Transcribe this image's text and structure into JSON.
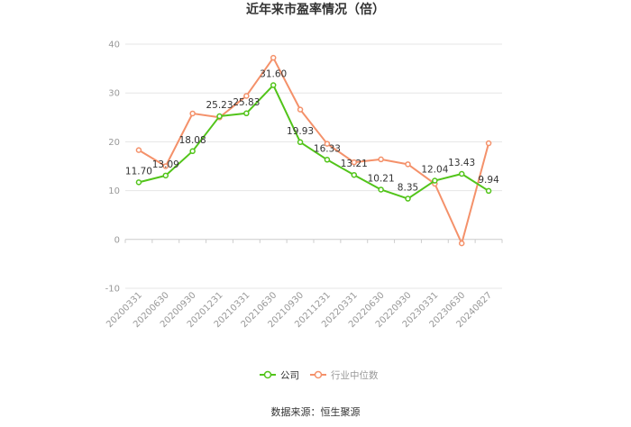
{
  "chart_data": {
    "type": "line",
    "title": "近年来市盈率情况（倍）",
    "xlabel": "",
    "ylabel": "",
    "ylim": [
      -10,
      40
    ],
    "yticks": [
      -10,
      0,
      10,
      20,
      30,
      40
    ],
    "grid": true,
    "legend_position": "bottom",
    "categories": [
      "20200331",
      "20200630",
      "20200930",
      "20201231",
      "20210331",
      "20210630",
      "20210930",
      "20211231",
      "20220331",
      "20220630",
      "20220930",
      "20230331",
      "20230630",
      "20240827"
    ],
    "series": [
      {
        "name": "公司",
        "color": "#52c41a",
        "values": [
          11.7,
          13.09,
          18.08,
          25.23,
          25.83,
          31.6,
          19.93,
          16.33,
          13.21,
          10.21,
          8.35,
          12.04,
          13.43,
          9.94
        ],
        "labels": [
          "11.70",
          "13.09",
          "18.08",
          "25.23",
          "25.83",
          "31.60",
          "19.93",
          "16.33",
          "13.21",
          "10.21",
          "8.35",
          "12.04",
          "13.43",
          "9.94"
        ]
      },
      {
        "name": "行业中位数",
        "color": "#f4916a",
        "values": [
          18.3,
          15.0,
          25.8,
          25.0,
          29.4,
          37.2,
          26.6,
          19.6,
          15.8,
          16.4,
          15.4,
          11.4,
          -0.8,
          19.7
        ]
      }
    ]
  },
  "footer": {
    "source": "数据来源：恒生聚源"
  }
}
